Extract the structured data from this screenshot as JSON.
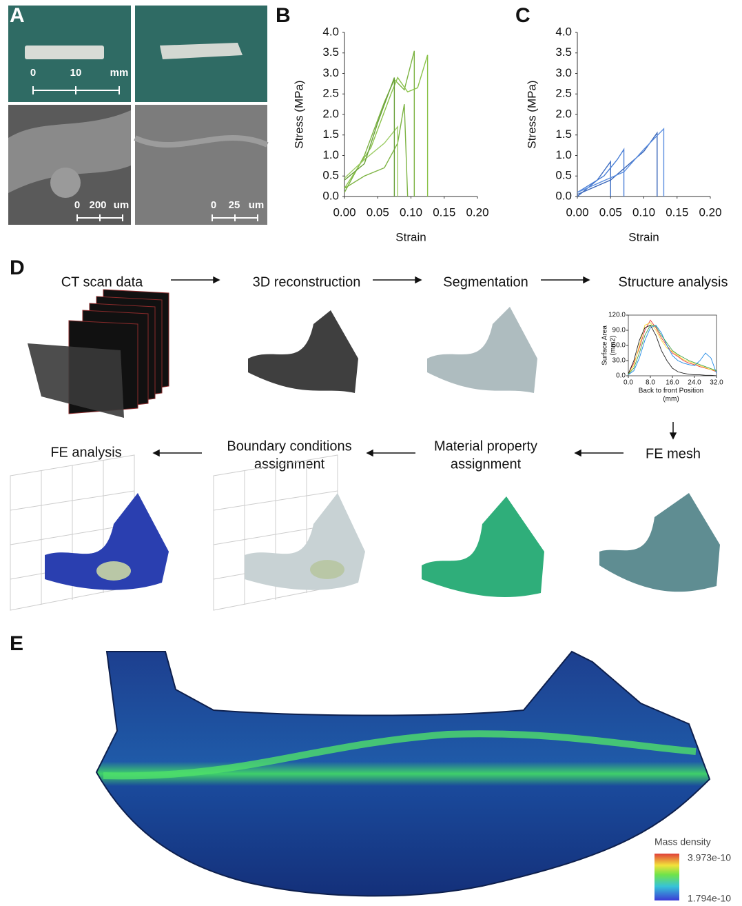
{
  "panel_labels": [
    "A",
    "B",
    "C",
    "D",
    "E"
  ],
  "panel_a": {
    "scale_bars": [
      [
        "0",
        "10",
        "mm"
      ],
      [
        "0",
        "200",
        "um"
      ],
      [
        "0",
        "25",
        "um"
      ]
    ]
  },
  "chart_data": [
    {
      "type": "line",
      "xlabel": "Strain",
      "ylabel": "Stress (MPa)",
      "xlim": [
        0,
        0.2
      ],
      "ylim": [
        0,
        4
      ],
      "xticks": [
        {
          "value": 0,
          "label": "0.00"
        },
        {
          "value": 0.05,
          "label": "0.05"
        },
        {
          "value": 0.1,
          "label": "0.10"
        },
        {
          "value": 0.15,
          "label": "0.15"
        },
        {
          "value": 0.2,
          "label": "0.20"
        }
      ],
      "yticks": [
        {
          "value": 0,
          "label": "0.0"
        },
        0.5,
        {
          "value": 1,
          "label": "1.0"
        },
        1.5,
        {
          "value": 2,
          "label": "2.0"
        },
        2.5,
        {
          "value": 3,
          "label": "3.0"
        },
        3.5,
        {
          "value": 4,
          "label": "4.0"
        }
      ],
      "series": [
        {
          "color": "#7cb342",
          "x": [
            0,
            0.03,
            0.06,
            0.075,
            0.09,
            0.105,
            0.105
          ],
          "values": [
            0.1,
            1.0,
            2.3,
            2.85,
            2.6,
            3.55,
            0
          ]
        },
        {
          "color": "#8bc34a",
          "x": [
            0,
            0.04,
            0.07,
            0.08,
            0.095,
            0.11,
            0.125,
            0.125
          ],
          "values": [
            0.2,
            1.2,
            2.5,
            2.9,
            2.55,
            2.65,
            3.45,
            0
          ]
        },
        {
          "color": "#7cb342",
          "x": [
            0,
            0.03,
            0.06,
            0.08,
            0.09,
            0.095
          ],
          "values": [
            0.2,
            0.5,
            0.7,
            1.3,
            2.25,
            0
          ]
        },
        {
          "color": "#9ccc65",
          "x": [
            0,
            0.03,
            0.06,
            0.08,
            0.08
          ],
          "values": [
            0.45,
            0.9,
            1.3,
            1.7,
            0
          ]
        },
        {
          "color": "#689f38",
          "x": [
            0,
            0.03,
            0.05,
            0.075,
            0.075
          ],
          "values": [
            0.4,
            0.8,
            1.8,
            2.9,
            0
          ]
        }
      ]
    },
    {
      "type": "line",
      "xlabel": "Strain",
      "ylabel": "Stress (MPa)",
      "xlim": [
        0,
        0.2
      ],
      "ylim": [
        0,
        4
      ],
      "xticks": [
        {
          "value": 0,
          "label": "0.00"
        },
        {
          "value": 0.05,
          "label": "0.05"
        },
        {
          "value": 0.1,
          "label": "0.10"
        },
        {
          "value": 0.15,
          "label": "0.15"
        },
        {
          "value": 0.2,
          "label": "0.20"
        }
      ],
      "yticks": [
        {
          "value": 0,
          "label": "0.0"
        },
        0.5,
        {
          "value": 1,
          "label": "1.0"
        },
        1.5,
        {
          "value": 2,
          "label": "2.0"
        },
        2.5,
        {
          "value": 3,
          "label": "3.0"
        },
        3.5,
        {
          "value": 4,
          "label": "4.0"
        }
      ],
      "series": [
        {
          "color": "#3f6fc4",
          "x": [
            0,
            0.03,
            0.05,
            0.05
          ],
          "values": [
            0,
            0.4,
            0.85,
            0
          ]
        },
        {
          "color": "#4a7fd6",
          "x": [
            0,
            0.04,
            0.06,
            0.07,
            0.07
          ],
          "values": [
            0.1,
            0.5,
            0.9,
            1.15,
            0
          ]
        },
        {
          "color": "#3a66b8",
          "x": [
            0,
            0.05,
            0.1,
            0.12,
            0.12
          ],
          "values": [
            0.05,
            0.4,
            1.1,
            1.55,
            0
          ]
        },
        {
          "color": "#5b8ee0",
          "x": [
            0,
            0.07,
            0.1,
            0.13,
            0.13
          ],
          "values": [
            0.1,
            0.6,
            1.15,
            1.65,
            0
          ]
        }
      ]
    },
    {
      "type": "line",
      "xlabel_lines": [
        "Back to front Position",
        "(mm)"
      ],
      "ylabel_lines": [
        "Surface Area",
        "(mm2)"
      ],
      "xlim": [
        0,
        32
      ],
      "ylim": [
        0,
        120
      ],
      "xticks": [
        {
          "value": 0,
          "label": "0.0"
        },
        {
          "value": 8,
          "label": "8.0"
        },
        {
          "value": 16,
          "label": "16.0"
        },
        {
          "value": 24,
          "label": "24.0"
        },
        {
          "value": 32,
          "label": "32.0"
        }
      ],
      "yticks": [
        {
          "value": 0,
          "label": "0.0"
        },
        {
          "value": 30,
          "label": "30.0"
        },
        {
          "value": 60,
          "label": "60.0"
        },
        {
          "value": 90,
          "label": "90.0"
        },
        {
          "value": 120,
          "label": "120.0"
        }
      ],
      "series": [
        {
          "color": "#e53935",
          "x": [
            0,
            2,
            4,
            6,
            8,
            10,
            12,
            14,
            16,
            18,
            20,
            22,
            24,
            26,
            28,
            30,
            32
          ],
          "values": [
            5,
            25,
            55,
            90,
            110,
            95,
            75,
            60,
            45,
            38,
            30,
            25,
            22,
            18,
            15,
            12,
            8
          ]
        },
        {
          "color": "#fdd835",
          "x": [
            0,
            2,
            4,
            6,
            8,
            10,
            12,
            14,
            16,
            18,
            20,
            22,
            24,
            26,
            28,
            30,
            32
          ],
          "values": [
            3,
            20,
            60,
            100,
            105,
            90,
            70,
            55,
            48,
            40,
            32,
            28,
            24,
            20,
            16,
            12,
            10
          ]
        },
        {
          "color": "#1e88e5",
          "x": [
            0,
            2,
            4,
            6,
            8,
            10,
            12,
            14,
            16,
            18,
            20,
            22,
            24,
            26,
            28,
            30,
            32
          ],
          "values": [
            2,
            10,
            35,
            70,
            95,
            100,
            85,
            60,
            40,
            30,
            25,
            22,
            20,
            30,
            45,
            35,
            5
          ]
        },
        {
          "color": "#212121",
          "x": [
            0,
            2,
            4,
            6,
            8,
            10,
            12,
            14,
            16,
            18,
            20,
            22,
            24,
            26,
            28,
            30,
            32
          ],
          "values": [
            4,
            30,
            70,
            95,
            100,
            80,
            50,
            30,
            15,
            8,
            5,
            3,
            2,
            2,
            1,
            1,
            0
          ]
        },
        {
          "color": "#43a047",
          "x": [
            0,
            2,
            4,
            6,
            8,
            10,
            12,
            14,
            16,
            18,
            20,
            22,
            24,
            26,
            28,
            30,
            32
          ],
          "values": [
            3,
            15,
            45,
            80,
            100,
            98,
            80,
            65,
            50,
            42,
            36,
            30,
            26,
            22,
            18,
            14,
            10
          ]
        }
      ]
    }
  ],
  "workflow": {
    "steps": [
      {
        "lines": [
          "CT scan data"
        ]
      },
      {
        "lines": [
          "3D reconstruction"
        ]
      },
      {
        "lines": [
          "Segmentation"
        ]
      },
      {
        "lines": [
          "Structure analysis"
        ]
      },
      {
        "lines": [
          "FE mesh"
        ]
      },
      {
        "lines": [
          "Material property",
          "assignment"
        ]
      },
      {
        "lines": [
          "Boundary conditions",
          "assignment"
        ]
      },
      {
        "lines": [
          "FE analysis"
        ]
      }
    ]
  },
  "panel_e": {
    "legend_title": "Mass density",
    "max_label": "3.973e-10",
    "min_label": "1.794e-10"
  }
}
